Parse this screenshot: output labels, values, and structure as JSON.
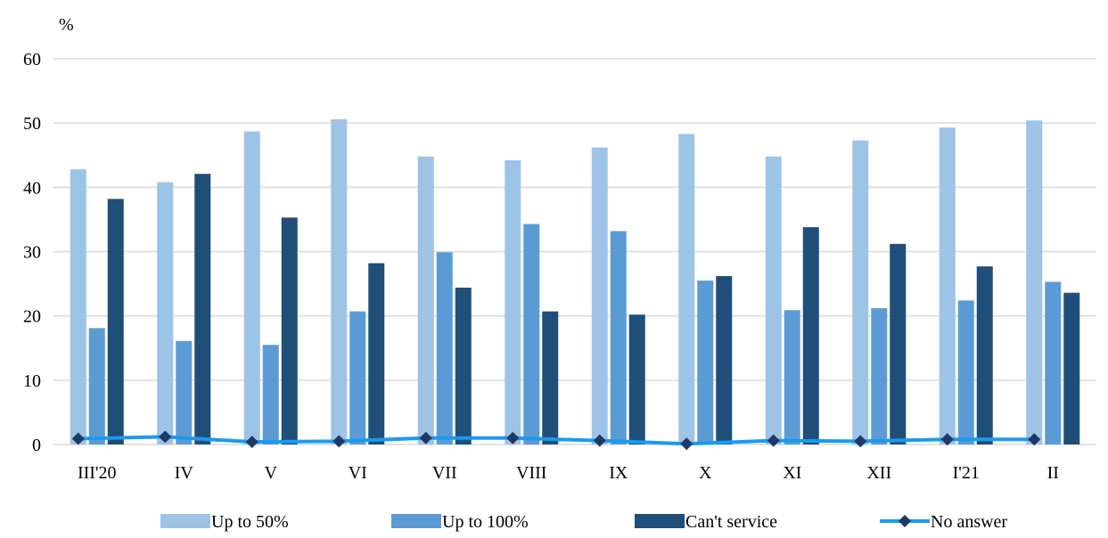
{
  "chart_data": {
    "type": "bar",
    "unit_label": "%",
    "categories": [
      "III'20",
      "IV",
      "V",
      "VI",
      "VII",
      "VIII",
      "IX",
      "X",
      "XI",
      "XII",
      "I'21",
      "II"
    ],
    "ylim": [
      0,
      60
    ],
    "yticks": [
      0,
      10,
      20,
      30,
      40,
      50,
      60
    ],
    "grid": true,
    "legend_position": "bottom",
    "series": [
      {
        "name": "Up to 50%",
        "type": "bar",
        "color": "#9dc3e6",
        "values": [
          42.8,
          40.8,
          48.7,
          50.6,
          44.8,
          44.2,
          46.2,
          48.3,
          44.8,
          47.3,
          49.3,
          50.4
        ]
      },
      {
        "name": "Up to 100%",
        "type": "bar",
        "color": "#5b9bd5",
        "values": [
          18.1,
          16.1,
          15.5,
          20.7,
          29.9,
          34.3,
          33.2,
          25.5,
          20.9,
          21.2,
          22.4,
          25.3
        ]
      },
      {
        "name": "Can't service",
        "type": "bar",
        "color": "#1f4e79",
        "values": [
          38.2,
          42.1,
          35.3,
          28.2,
          24.4,
          20.7,
          20.2,
          26.2,
          33.8,
          31.2,
          27.7,
          23.6
        ]
      },
      {
        "name": "No answer",
        "type": "line",
        "color": "#1a9af0",
        "marker_color": "#1f3864",
        "values": [
          0.9,
          1.2,
          0.4,
          0.5,
          1.0,
          1.0,
          0.6,
          0.1,
          0.6,
          0.5,
          0.8,
          0.8
        ]
      }
    ]
  }
}
